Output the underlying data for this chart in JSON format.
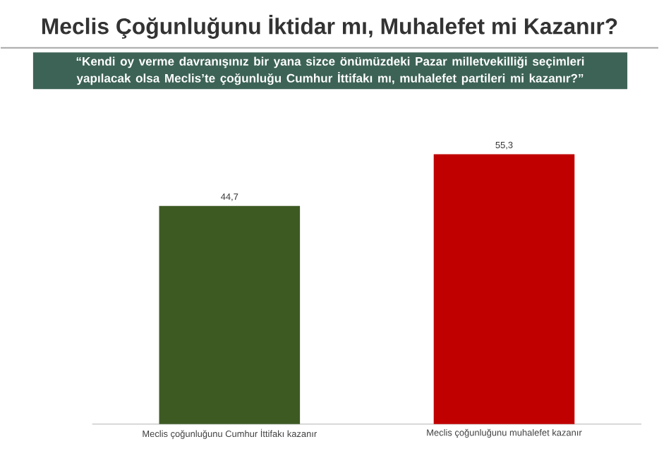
{
  "chart_data": {
    "type": "bar",
    "title": "Meclis Çoğunluğunu İktidar mı, Muhalefet mi Kazanır?",
    "subtitle": "“Kendi oy verme davranışınız bir yana sizce önümüzdeki Pazar milletvekilliği seçimleri yapılacak olsa Meclis’te çoğunluğu Cumhur İttifakı mı, muhalefet partileri mi kazanır?”",
    "categories": [
      "Meclis çoğunluğunu Cumhur İttifakı kazanır",
      "Meclis çoğunluğunu muhalefet kazanır"
    ],
    "values": [
      44.7,
      55.3
    ],
    "value_labels": [
      "44,7",
      "55,3"
    ],
    "colors": [
      "#3d5a23",
      "#c00000"
    ]
  }
}
